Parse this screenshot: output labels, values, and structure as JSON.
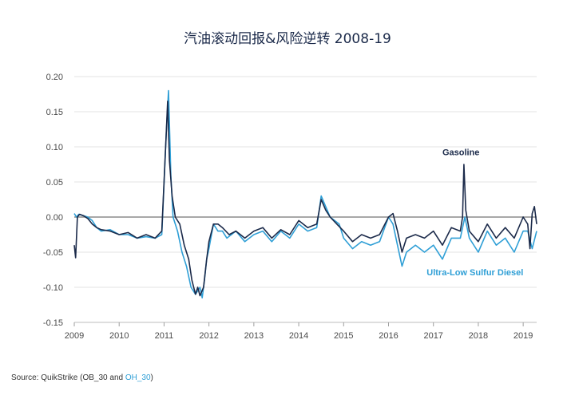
{
  "page": {
    "title": "汽油滚动回报&风险逆转 2008-19",
    "source": {
      "prefix": "Source: QuikStrike (OB_30 and ",
      "highlight": "OH_30",
      "suffix": ")"
    }
  },
  "chart_data": {
    "type": "line",
    "title": "汽油滚动回报&风险逆转 2008-19",
    "xlabel": "",
    "ylabel": "",
    "xlim": [
      2009,
      2019.3
    ],
    "ylim": [
      -0.15,
      0.2
    ],
    "x_ticks": [
      "2009",
      "2010",
      "2011",
      "2012",
      "2013",
      "2014",
      "2015",
      "2016",
      "2017",
      "2018",
      "2019"
    ],
    "y_ticks": [
      "0.20",
      "0.15",
      "0.10",
      "0.05",
      "0.00",
      "-0.05",
      "-0.10",
      "-0.15"
    ],
    "zero_line": true,
    "grid": "horizontal",
    "series": [
      {
        "name": "Ultra-Low Sulfur Diesel",
        "color": "#2f9fd6",
        "x": [
          2009.0,
          2009.05,
          2009.1,
          2009.2,
          2009.3,
          2009.4,
          2009.5,
          2009.6,
          2009.8,
          2010.0,
          2010.2,
          2010.4,
          2010.6,
          2010.8,
          2010.95,
          2011.05,
          2011.1,
          2011.15,
          2011.2,
          2011.3,
          2011.4,
          2011.5,
          2011.6,
          2011.7,
          2011.8,
          2011.85,
          2011.9,
          2011.95,
          2012.0,
          2012.1,
          2012.2,
          2012.3,
          2012.4,
          2012.6,
          2012.8,
          2013.0,
          2013.2,
          2013.4,
          2013.6,
          2013.8,
          2014.0,
          2014.2,
          2014.4,
          2014.5,
          2014.6,
          2014.7,
          2014.9,
          2015.0,
          2015.2,
          2015.4,
          2015.6,
          2015.8,
          2016.0,
          2016.1,
          2016.2,
          2016.3,
          2016.4,
          2016.6,
          2016.8,
          2017.0,
          2017.2,
          2017.4,
          2017.6,
          2017.7,
          2017.8,
          2018.0,
          2018.2,
          2018.4,
          2018.6,
          2018.8,
          2019.0,
          2019.1,
          2019.2,
          2019.3
        ],
        "y": [
          0.005,
          0.0,
          0.004,
          0.002,
          0.0,
          -0.005,
          -0.015,
          -0.02,
          -0.018,
          -0.025,
          -0.025,
          -0.03,
          -0.028,
          -0.03,
          -0.025,
          0.12,
          0.18,
          0.06,
          0.0,
          -0.02,
          -0.05,
          -0.07,
          -0.1,
          -0.11,
          -0.1,
          -0.115,
          -0.09,
          -0.06,
          -0.045,
          -0.01,
          -0.02,
          -0.02,
          -0.03,
          -0.02,
          -0.035,
          -0.025,
          -0.02,
          -0.035,
          -0.02,
          -0.03,
          -0.01,
          -0.02,
          -0.015,
          0.03,
          0.015,
          0.0,
          -0.01,
          -0.03,
          -0.045,
          -0.035,
          -0.04,
          -0.035,
          0.0,
          -0.01,
          -0.04,
          -0.07,
          -0.05,
          -0.04,
          -0.05,
          -0.04,
          -0.06,
          -0.03,
          -0.03,
          0.0,
          -0.03,
          -0.05,
          -0.02,
          -0.04,
          -0.03,
          -0.05,
          -0.02,
          -0.02,
          -0.045,
          -0.02
        ]
      },
      {
        "name": "Gasoline",
        "color": "#1b2a4a",
        "x": [
          2009.0,
          2009.03,
          2009.07,
          2009.12,
          2009.2,
          2009.3,
          2009.4,
          2009.5,
          2009.6,
          2009.8,
          2010.0,
          2010.2,
          2010.4,
          2010.6,
          2010.8,
          2010.95,
          2011.05,
          2011.08,
          2011.12,
          2011.18,
          2011.25,
          2011.35,
          2011.45,
          2011.55,
          2011.62,
          2011.7,
          2011.75,
          2011.8,
          2011.88,
          2011.95,
          2012.0,
          2012.1,
          2012.2,
          2012.3,
          2012.45,
          2012.6,
          2012.8,
          2013.0,
          2013.2,
          2013.4,
          2013.6,
          2013.8,
          2014.0,
          2014.2,
          2014.4,
          2014.5,
          2014.6,
          2014.7,
          2014.85,
          2015.0,
          2015.2,
          2015.4,
          2015.6,
          2015.8,
          2016.0,
          2016.1,
          2016.2,
          2016.3,
          2016.4,
          2016.6,
          2016.8,
          2017.0,
          2017.2,
          2017.4,
          2017.6,
          2017.65,
          2017.68,
          2017.72,
          2017.8,
          2018.0,
          2018.2,
          2018.4,
          2018.6,
          2018.8,
          2019.0,
          2019.1,
          2019.15,
          2019.2,
          2019.25,
          2019.3
        ],
        "y": [
          -0.04,
          -0.058,
          0.0,
          0.004,
          0.002,
          -0.002,
          -0.01,
          -0.015,
          -0.018,
          -0.02,
          -0.025,
          -0.022,
          -0.03,
          -0.025,
          -0.03,
          -0.02,
          0.12,
          0.165,
          0.08,
          0.03,
          0.0,
          -0.01,
          -0.04,
          -0.06,
          -0.09,
          -0.11,
          -0.1,
          -0.112,
          -0.1,
          -0.06,
          -0.035,
          -0.01,
          -0.01,
          -0.015,
          -0.025,
          -0.02,
          -0.03,
          -0.02,
          -0.015,
          -0.03,
          -0.018,
          -0.025,
          -0.005,
          -0.015,
          -0.01,
          0.025,
          0.01,
          0.0,
          -0.01,
          -0.02,
          -0.035,
          -0.025,
          -0.03,
          -0.025,
          0.0,
          0.005,
          -0.02,
          -0.05,
          -0.03,
          -0.025,
          -0.03,
          -0.02,
          -0.04,
          -0.015,
          -0.02,
          0.0,
          0.075,
          0.01,
          -0.02,
          -0.035,
          -0.01,
          -0.03,
          -0.015,
          -0.03,
          0.0,
          -0.01,
          -0.045,
          0.005,
          0.015,
          -0.01
        ]
      }
    ],
    "annotations": [
      {
        "text": "Gasoline",
        "series": "Gasoline",
        "x": 2017.2,
        "y": 0.088
      },
      {
        "text": "Ultra-Low Sulfur Diesel",
        "series": "Ultra-Low Sulfur Diesel",
        "x": 2016.85,
        "y": -0.083
      }
    ]
  }
}
